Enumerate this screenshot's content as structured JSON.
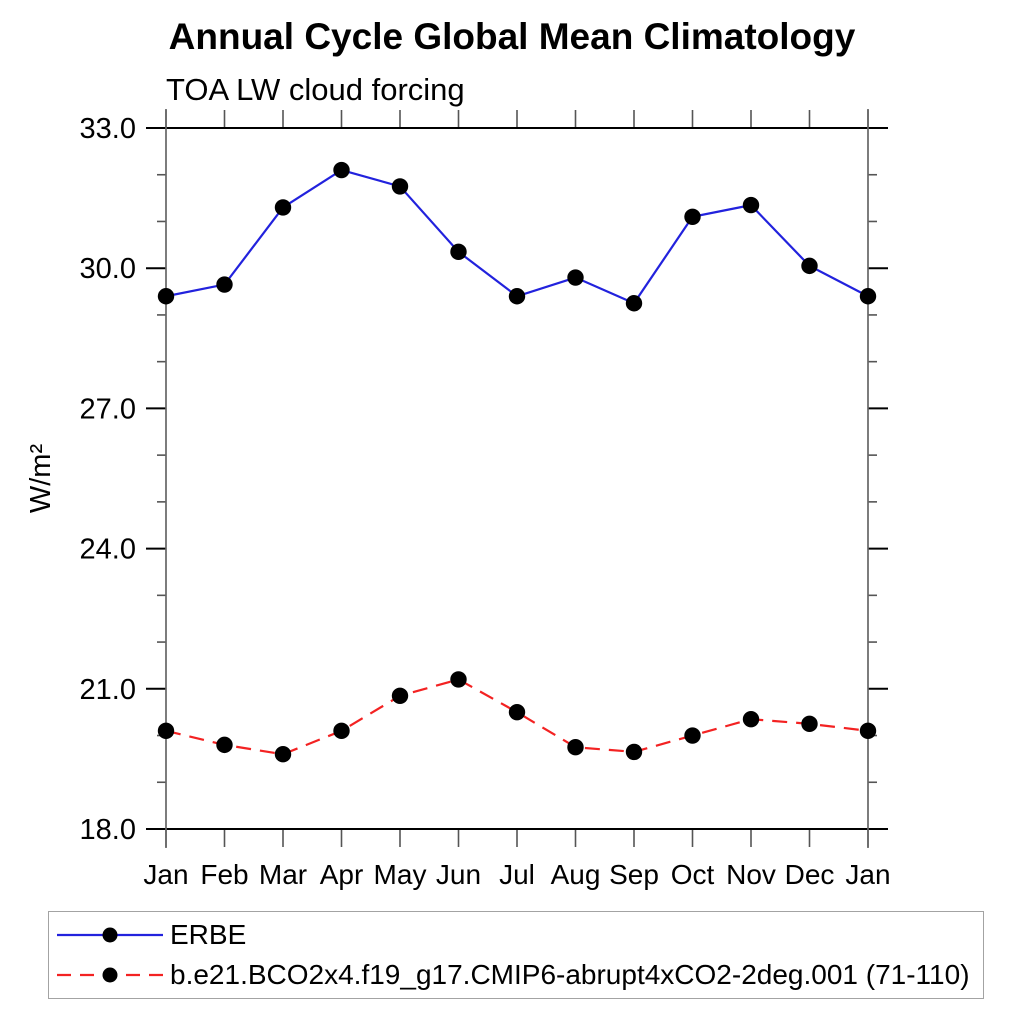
{
  "title": "Annual Cycle Global Mean Climatology",
  "subtitle": "TOA LW cloud forcing",
  "chart_data": {
    "type": "line",
    "title": "Annual Cycle Global Mean Climatology",
    "subtitle": "TOA LW cloud forcing",
    "xlabel": "",
    "ylabel": "W/m²",
    "x_categories": [
      "Jan",
      "Feb",
      "Mar",
      "Apr",
      "May",
      "Jun",
      "Jul",
      "Aug",
      "Sep",
      "Oct",
      "Nov",
      "Dec",
      "Jan"
    ],
    "ylim": [
      18.0,
      33.0
    ],
    "y_major_ticks": [
      18.0,
      21.0,
      24.0,
      27.0,
      30.0,
      33.0
    ],
    "y_minor_step": 1.0,
    "grid": false,
    "legend_position": "bottom-box",
    "series": [
      {
        "name": "ERBE",
        "color": "#2222dd",
        "line_style": "solid",
        "marker": "circle",
        "marker_color": "#000000",
        "values": [
          29.4,
          29.65,
          31.3,
          32.1,
          31.75,
          30.35,
          29.4,
          29.8,
          29.25,
          31.1,
          31.35,
          30.05,
          29.4
        ]
      },
      {
        "name": "b.e21.BCO2x4.f19_g17.CMIP6-abrupt4xCO2-2deg.001 (71-110)",
        "color": "#f32222",
        "line_style": "dashed",
        "marker": "circle",
        "marker_color": "#000000",
        "values": [
          20.1,
          19.8,
          19.6,
          20.1,
          20.85,
          21.2,
          20.5,
          19.75,
          19.65,
          20.0,
          20.35,
          20.25,
          20.1
        ]
      }
    ]
  }
}
